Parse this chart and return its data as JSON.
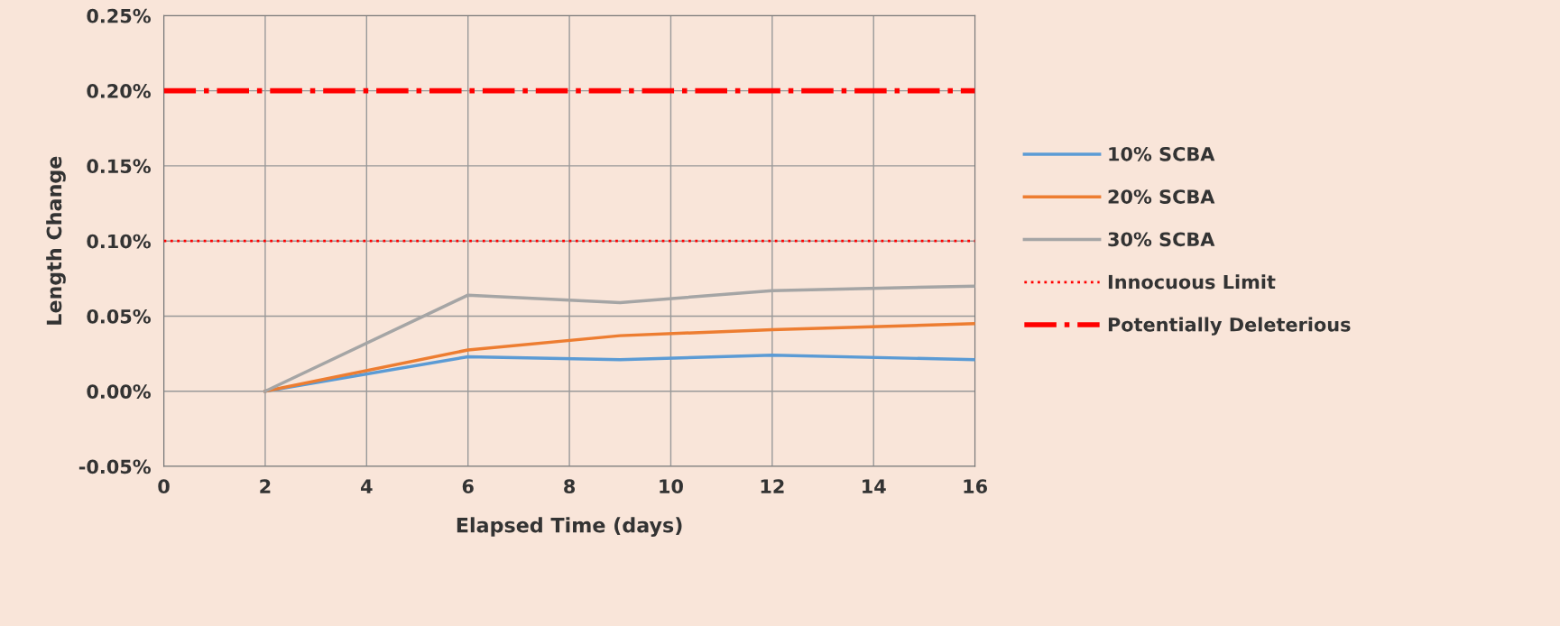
{
  "chart_data": {
    "type": "line",
    "xlabel": "Elapsed Time (days)",
    "ylabel": "Length Change",
    "x": [
      2,
      6,
      9,
      12,
      16
    ],
    "series": [
      {
        "name": "10% SCBA",
        "color": "#5b9bd5",
        "values": [
          0.0,
          0.023,
          0.021,
          0.024,
          0.021
        ]
      },
      {
        "name": "20% SCBA",
        "color": "#ed7d31",
        "values": [
          0.0,
          0.0275,
          0.037,
          0.041,
          0.045
        ]
      },
      {
        "name": "30% SCBA",
        "color": "#a5a5a5",
        "values": [
          0.0,
          0.064,
          0.059,
          0.067,
          0.07
        ]
      }
    ],
    "ref_lines": [
      {
        "axis": "y",
        "value": 0.1,
        "label": "Innocuous Limit",
        "color": "#ff0000",
        "line_style": "dotted"
      },
      {
        "axis": "y",
        "value": 0.2,
        "label": "Potentially Deleterious",
        "color": "#ff0000",
        "line_style": "dashdot"
      }
    ],
    "xlim": [
      0,
      16
    ],
    "xticks": [
      0,
      2,
      4,
      6,
      8,
      10,
      12,
      14,
      16
    ],
    "ylim": [
      -0.05,
      0.25
    ],
    "yticks": [
      {
        "value": -0.05,
        "label": "-0.05%"
      },
      {
        "value": 0.0,
        "label": "0.00%"
      },
      {
        "value": 0.05,
        "label": "0.05%"
      },
      {
        "value": 0.1,
        "label": "0.10%"
      },
      {
        "value": 0.15,
        "label": "0.15%"
      },
      {
        "value": 0.2,
        "label": "0.20%"
      },
      {
        "value": 0.25,
        "label": "0.25%"
      }
    ],
    "grid": true,
    "legend": "right"
  }
}
